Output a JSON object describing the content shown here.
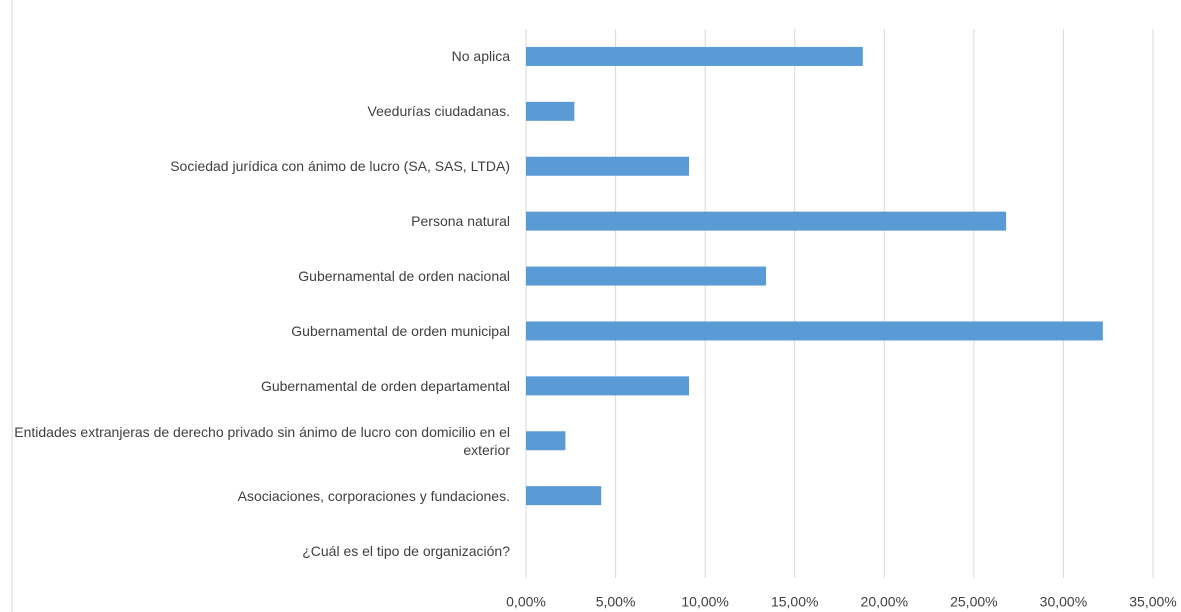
{
  "chart_data": {
    "type": "bar",
    "orientation": "horizontal",
    "categories": [
      "No aplica",
      "Veedurías ciudadanas.",
      "Sociedad jurídica con ánimo de lucro (SA, SAS, LTDA)",
      "Persona natural",
      "Gubernamental de orden nacional",
      "Gubernamental de orden municipal",
      "Gubernamental de orden departamental",
      "Entidades extranjeras de derecho privado sin ánimo de lucro con domicilio en el exterior",
      "Asociaciones, corporaciones y fundaciones.",
      "¿Cuál es el tipo de organización?"
    ],
    "values": [
      18.8,
      2.7,
      9.1,
      26.8,
      13.4,
      32.2,
      9.1,
      2.2,
      4.2,
      0
    ],
    "color": "#5b9bd5",
    "xlim": [
      0,
      35
    ],
    "xticks": [
      {
        "value": 0,
        "label": "0,00%"
      },
      {
        "value": 5,
        "label": "5,00%"
      },
      {
        "value": 10,
        "label": "10,00%"
      },
      {
        "value": 15,
        "label": "15,00%"
      },
      {
        "value": 20,
        "label": "20,00%"
      },
      {
        "value": 25,
        "label": "25,00%"
      },
      {
        "value": 30,
        "label": "30,00%"
      },
      {
        "value": 35,
        "label": "35,00%"
      }
    ],
    "grid": true
  }
}
